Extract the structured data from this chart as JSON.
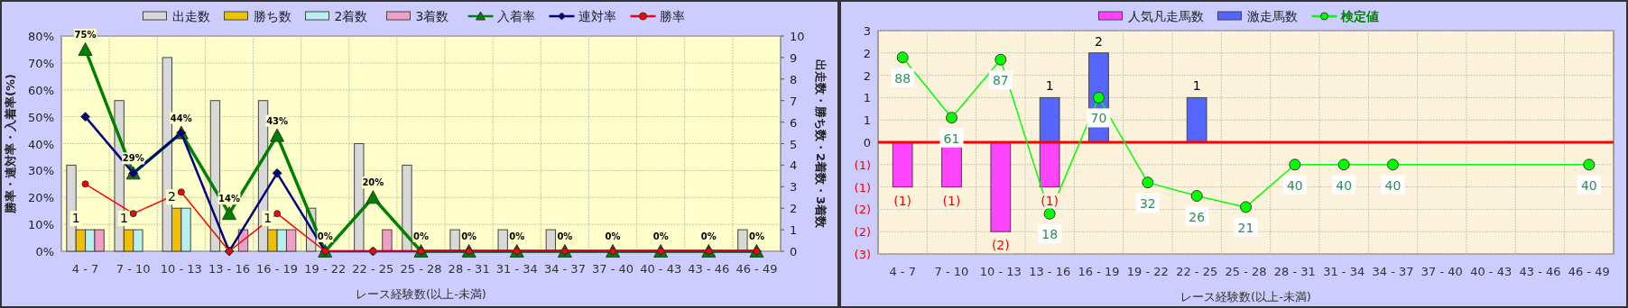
{
  "chart_data": [
    {
      "type": "bar",
      "categories": [
        "4 - 7",
        "7 - 10",
        "10 - 13",
        "13 - 16",
        "16 - 19",
        "19 - 22",
        "22 - 25",
        "25 - 28",
        "28 - 31",
        "31 - 34",
        "34 - 37",
        "37 - 40",
        "40 - 43",
        "43 - 46",
        "46 - 49"
      ],
      "xlabel": "レース経験数(以上-未満)",
      "ylabel": "勝率・連対率・入着率(%)",
      "y2label": "出走数・勝ち数・2着数・3着数",
      "ylim": [
        0,
        80
      ],
      "yticks": [
        {
          "value": 0,
          "label": "0%"
        },
        {
          "value": 10,
          "label": "10%"
        },
        {
          "value": 20,
          "label": "20%"
        },
        {
          "value": 30,
          "label": "30%"
        },
        {
          "value": 40,
          "label": "40%"
        },
        {
          "value": 50,
          "label": "50%"
        },
        {
          "value": 60,
          "label": "60%"
        },
        {
          "value": 70,
          "label": "70%"
        },
        {
          "value": 80,
          "label": "80%"
        }
      ],
      "y2lim": [
        0,
        10
      ],
      "y2ticks": [
        0,
        1,
        2,
        3,
        4,
        5,
        6,
        7,
        8,
        9,
        10
      ],
      "grid": true,
      "legend": "top",
      "series": [
        {
          "name": "出走数",
          "type": "bar",
          "axis": "y2",
          "color": "#d8d8d8",
          "values": [
            4,
            7,
            9,
            7,
            7,
            2,
            5,
            4,
            1,
            1,
            1,
            0,
            0,
            0,
            1
          ]
        },
        {
          "name": "勝ち数",
          "type": "bar",
          "axis": "y2",
          "color": "#f0c000",
          "values": [
            1,
            1,
            2,
            0,
            1,
            0,
            0,
            0,
            0,
            0,
            0,
            0,
            0,
            0,
            0
          ],
          "value_labels": [
            "1",
            "1",
            "2",
            null,
            "1",
            null,
            null,
            null,
            null,
            null,
            null,
            null,
            null,
            null,
            null
          ]
        },
        {
          "name": "2着数",
          "type": "bar",
          "axis": "y2",
          "color": "#b8f0f0",
          "values": [
            1,
            1,
            2,
            0,
            1,
            0,
            0,
            0,
            0,
            0,
            0,
            0,
            0,
            0,
            0
          ]
        },
        {
          "name": "3着数",
          "type": "bar",
          "axis": "y2",
          "color": "#f0a0c8",
          "values": [
            1,
            0,
            0,
            1,
            1,
            0,
            1,
            0,
            0,
            0,
            0,
            0,
            0,
            0,
            0
          ]
        },
        {
          "name": "入着率",
          "type": "line",
          "color": "#008000",
          "marker": "triangle",
          "values": [
            75,
            29,
            44,
            14,
            43,
            0,
            20,
            0,
            0,
            0,
            0,
            0,
            0,
            0,
            0
          ],
          "value_labels": [
            "75%",
            "29%",
            "44%",
            "14%",
            "43%",
            "0%",
            "20%",
            "0%",
            "0%",
            "0%",
            "0%",
            "0%",
            "0%",
            "0%",
            "0%"
          ]
        },
        {
          "name": "連対率",
          "type": "line",
          "color": "#000080",
          "marker": "diamond",
          "values": [
            50,
            29,
            44,
            0,
            29,
            0,
            0,
            0,
            0,
            0,
            0,
            0,
            0,
            0,
            0
          ]
        },
        {
          "name": "勝率",
          "type": "line",
          "color": "#ff0000",
          "marker": "circle",
          "values": [
            25,
            14,
            22,
            0,
            14,
            0,
            0,
            0,
            0,
            0,
            0,
            0,
            0,
            0,
            0
          ]
        }
      ]
    },
    {
      "type": "bar",
      "categories": [
        "4 - 7",
        "7 - 10",
        "10 - 13",
        "13 - 16",
        "16 - 19",
        "19 - 22",
        "22 - 25",
        "25 - 28",
        "28 - 31",
        "31 - 34",
        "34 - 37",
        "37 - 40",
        "40 - 43",
        "43 - 46",
        "46 - 49"
      ],
      "xlabel": "レース経験数(以上-未満)",
      "ylim": [
        -2.5,
        2.5
      ],
      "yticks": [
        {
          "value": -2.5,
          "label": "(3)"
        },
        {
          "value": -2,
          "label": "(2)"
        },
        {
          "value": -1.5,
          "label": "(2)"
        },
        {
          "value": -1,
          "label": "(1)"
        },
        {
          "value": -0.5,
          "label": "(1)"
        },
        {
          "value": 0,
          "label": "0"
        },
        {
          "value": 0.5,
          "label": "1"
        },
        {
          "value": 1,
          "label": "1"
        },
        {
          "value": 1.5,
          "label": "2"
        },
        {
          "value": 2,
          "label": "2"
        },
        {
          "value": 2.5,
          "label": "3"
        }
      ],
      "y2lim": [
        0,
        100
      ],
      "grid": true,
      "legend": "top",
      "stacked": true,
      "ref_lines": [
        {
          "axis": "y",
          "value": 0,
          "color": "#ff0000"
        }
      ],
      "series": [
        {
          "name": "人気凡走馬数",
          "type": "bar",
          "color": "#ff44ff",
          "values": [
            -1,
            -1,
            -2,
            -1,
            null,
            null,
            null,
            null,
            null,
            null,
            null,
            null,
            null,
            null,
            null
          ],
          "value_labels": [
            "(1)",
            "(1)",
            "(2)",
            "(1)",
            null,
            null,
            null,
            null,
            null,
            null,
            null,
            null,
            null,
            null,
            null
          ]
        },
        {
          "name": "激走馬数",
          "type": "bar",
          "color": "#5566ff",
          "values": [
            null,
            null,
            null,
            1,
            2,
            null,
            1,
            null,
            null,
            null,
            null,
            null,
            null,
            null,
            null
          ],
          "value_labels": [
            null,
            null,
            null,
            "1",
            "2",
            null,
            "1",
            null,
            null,
            null,
            null,
            null,
            null,
            null,
            null
          ]
        },
        {
          "name": "検定値",
          "type": "line",
          "axis": "y2",
          "color": "#00ff00",
          "marker": "circle",
          "values": [
            88,
            61,
            87,
            18,
            70,
            32,
            26,
            21,
            40,
            40,
            40,
            null,
            null,
            null,
            40
          ],
          "data_labels": true
        }
      ]
    }
  ]
}
